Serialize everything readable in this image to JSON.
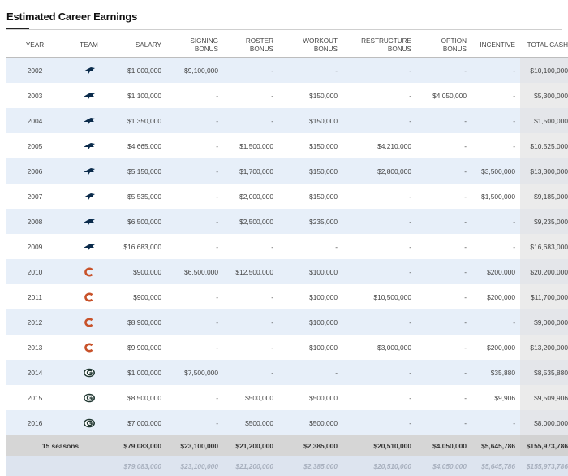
{
  "title": "Estimated Career Earnings",
  "columns": [
    "YEAR",
    "TEAM",
    "SALARY",
    "SIGNING BONUS",
    "ROSTER BONUS",
    "WORKOUT BONUS",
    "RESTRUCTURE BONUS",
    "OPTION BONUS",
    "INCENTIVE",
    "TOTAL CASH"
  ],
  "team_icons": {
    "car": "panthers-logo-icon",
    "chi": "bears-c-logo-icon",
    "gb": "packers-g-logo-icon"
  },
  "colors": {
    "alt_row": "#e7eff9",
    "total_col": "#ebebeb",
    "summary_row": "#d6d6d6",
    "panthers": "#0a2a4a",
    "bears": "#c8522a",
    "packers": "#203731"
  },
  "rows": [
    {
      "year": "2002",
      "team": "car",
      "salary": "$1,000,000",
      "signing": "$9,100,000",
      "roster": "-",
      "workout": "-",
      "restructure": "-",
      "option": "-",
      "incentive": "-",
      "total": "$10,100,000"
    },
    {
      "year": "2003",
      "team": "car",
      "salary": "$1,100,000",
      "signing": "-",
      "roster": "-",
      "workout": "$150,000",
      "restructure": "-",
      "option": "$4,050,000",
      "incentive": "-",
      "total": "$5,300,000"
    },
    {
      "year": "2004",
      "team": "car",
      "salary": "$1,350,000",
      "signing": "-",
      "roster": "-",
      "workout": "$150,000",
      "restructure": "-",
      "option": "-",
      "incentive": "-",
      "total": "$1,500,000"
    },
    {
      "year": "2005",
      "team": "car",
      "salary": "$4,665,000",
      "signing": "-",
      "roster": "$1,500,000",
      "workout": "$150,000",
      "restructure": "$4,210,000",
      "option": "-",
      "incentive": "-",
      "total": "$10,525,000"
    },
    {
      "year": "2006",
      "team": "car",
      "salary": "$5,150,000",
      "signing": "-",
      "roster": "$1,700,000",
      "workout": "$150,000",
      "restructure": "$2,800,000",
      "option": "-",
      "incentive": "$3,500,000",
      "total": "$13,300,000"
    },
    {
      "year": "2007",
      "team": "car",
      "salary": "$5,535,000",
      "signing": "-",
      "roster": "$2,000,000",
      "workout": "$150,000",
      "restructure": "-",
      "option": "-",
      "incentive": "$1,500,000",
      "total": "$9,185,000"
    },
    {
      "year": "2008",
      "team": "car",
      "salary": "$6,500,000",
      "signing": "-",
      "roster": "$2,500,000",
      "workout": "$235,000",
      "restructure": "-",
      "option": "-",
      "incentive": "-",
      "total": "$9,235,000"
    },
    {
      "year": "2009",
      "team": "car",
      "salary": "$16,683,000",
      "signing": "-",
      "roster": "-",
      "workout": "-",
      "restructure": "-",
      "option": "-",
      "incentive": "-",
      "total": "$16,683,000"
    },
    {
      "year": "2010",
      "team": "chi",
      "salary": "$900,000",
      "signing": "$6,500,000",
      "roster": "$12,500,000",
      "workout": "$100,000",
      "restructure": "-",
      "option": "-",
      "incentive": "$200,000",
      "total": "$20,200,000"
    },
    {
      "year": "2011",
      "team": "chi",
      "salary": "$900,000",
      "signing": "-",
      "roster": "-",
      "workout": "$100,000",
      "restructure": "$10,500,000",
      "option": "-",
      "incentive": "$200,000",
      "total": "$11,700,000"
    },
    {
      "year": "2012",
      "team": "chi",
      "salary": "$8,900,000",
      "signing": "-",
      "roster": "-",
      "workout": "$100,000",
      "restructure": "-",
      "option": "-",
      "incentive": "-",
      "total": "$9,000,000"
    },
    {
      "year": "2013",
      "team": "chi",
      "salary": "$9,900,000",
      "signing": "-",
      "roster": "-",
      "workout": "$100,000",
      "restructure": "$3,000,000",
      "option": "-",
      "incentive": "$200,000",
      "total": "$13,200,000"
    },
    {
      "year": "2014",
      "team": "gb",
      "salary": "$1,000,000",
      "signing": "$7,500,000",
      "roster": "-",
      "workout": "-",
      "restructure": "-",
      "option": "-",
      "incentive": "$35,880",
      "total": "$8,535,880"
    },
    {
      "year": "2015",
      "team": "gb",
      "salary": "$8,500,000",
      "signing": "-",
      "roster": "$500,000",
      "workout": "$500,000",
      "restructure": "-",
      "option": "-",
      "incentive": "$9,906",
      "total": "$9,509,906"
    },
    {
      "year": "2016",
      "team": "gb",
      "salary": "$7,000,000",
      "signing": "-",
      "roster": "$500,000",
      "workout": "$500,000",
      "restructure": "-",
      "option": "-",
      "incentive": "-",
      "total": "$8,000,000"
    }
  ],
  "summary": {
    "label": "15 seasons",
    "salary": "$79,083,000",
    "signing": "$23,100,000",
    "roster": "$21,200,000",
    "workout": "$2,385,000",
    "restructure": "$20,510,000",
    "option": "$4,050,000",
    "incentive": "$5,645,786",
    "total": "$155,973,786"
  },
  "ghost": {
    "label": "",
    "salary": "$79,083,000",
    "signing": "$23,100,000",
    "roster": "$21,200,000",
    "workout": "$2,385,000",
    "restructure": "$20,510,000",
    "option": "$4,050,000",
    "incentive": "$5,645,786",
    "total": "$155,973,786"
  }
}
